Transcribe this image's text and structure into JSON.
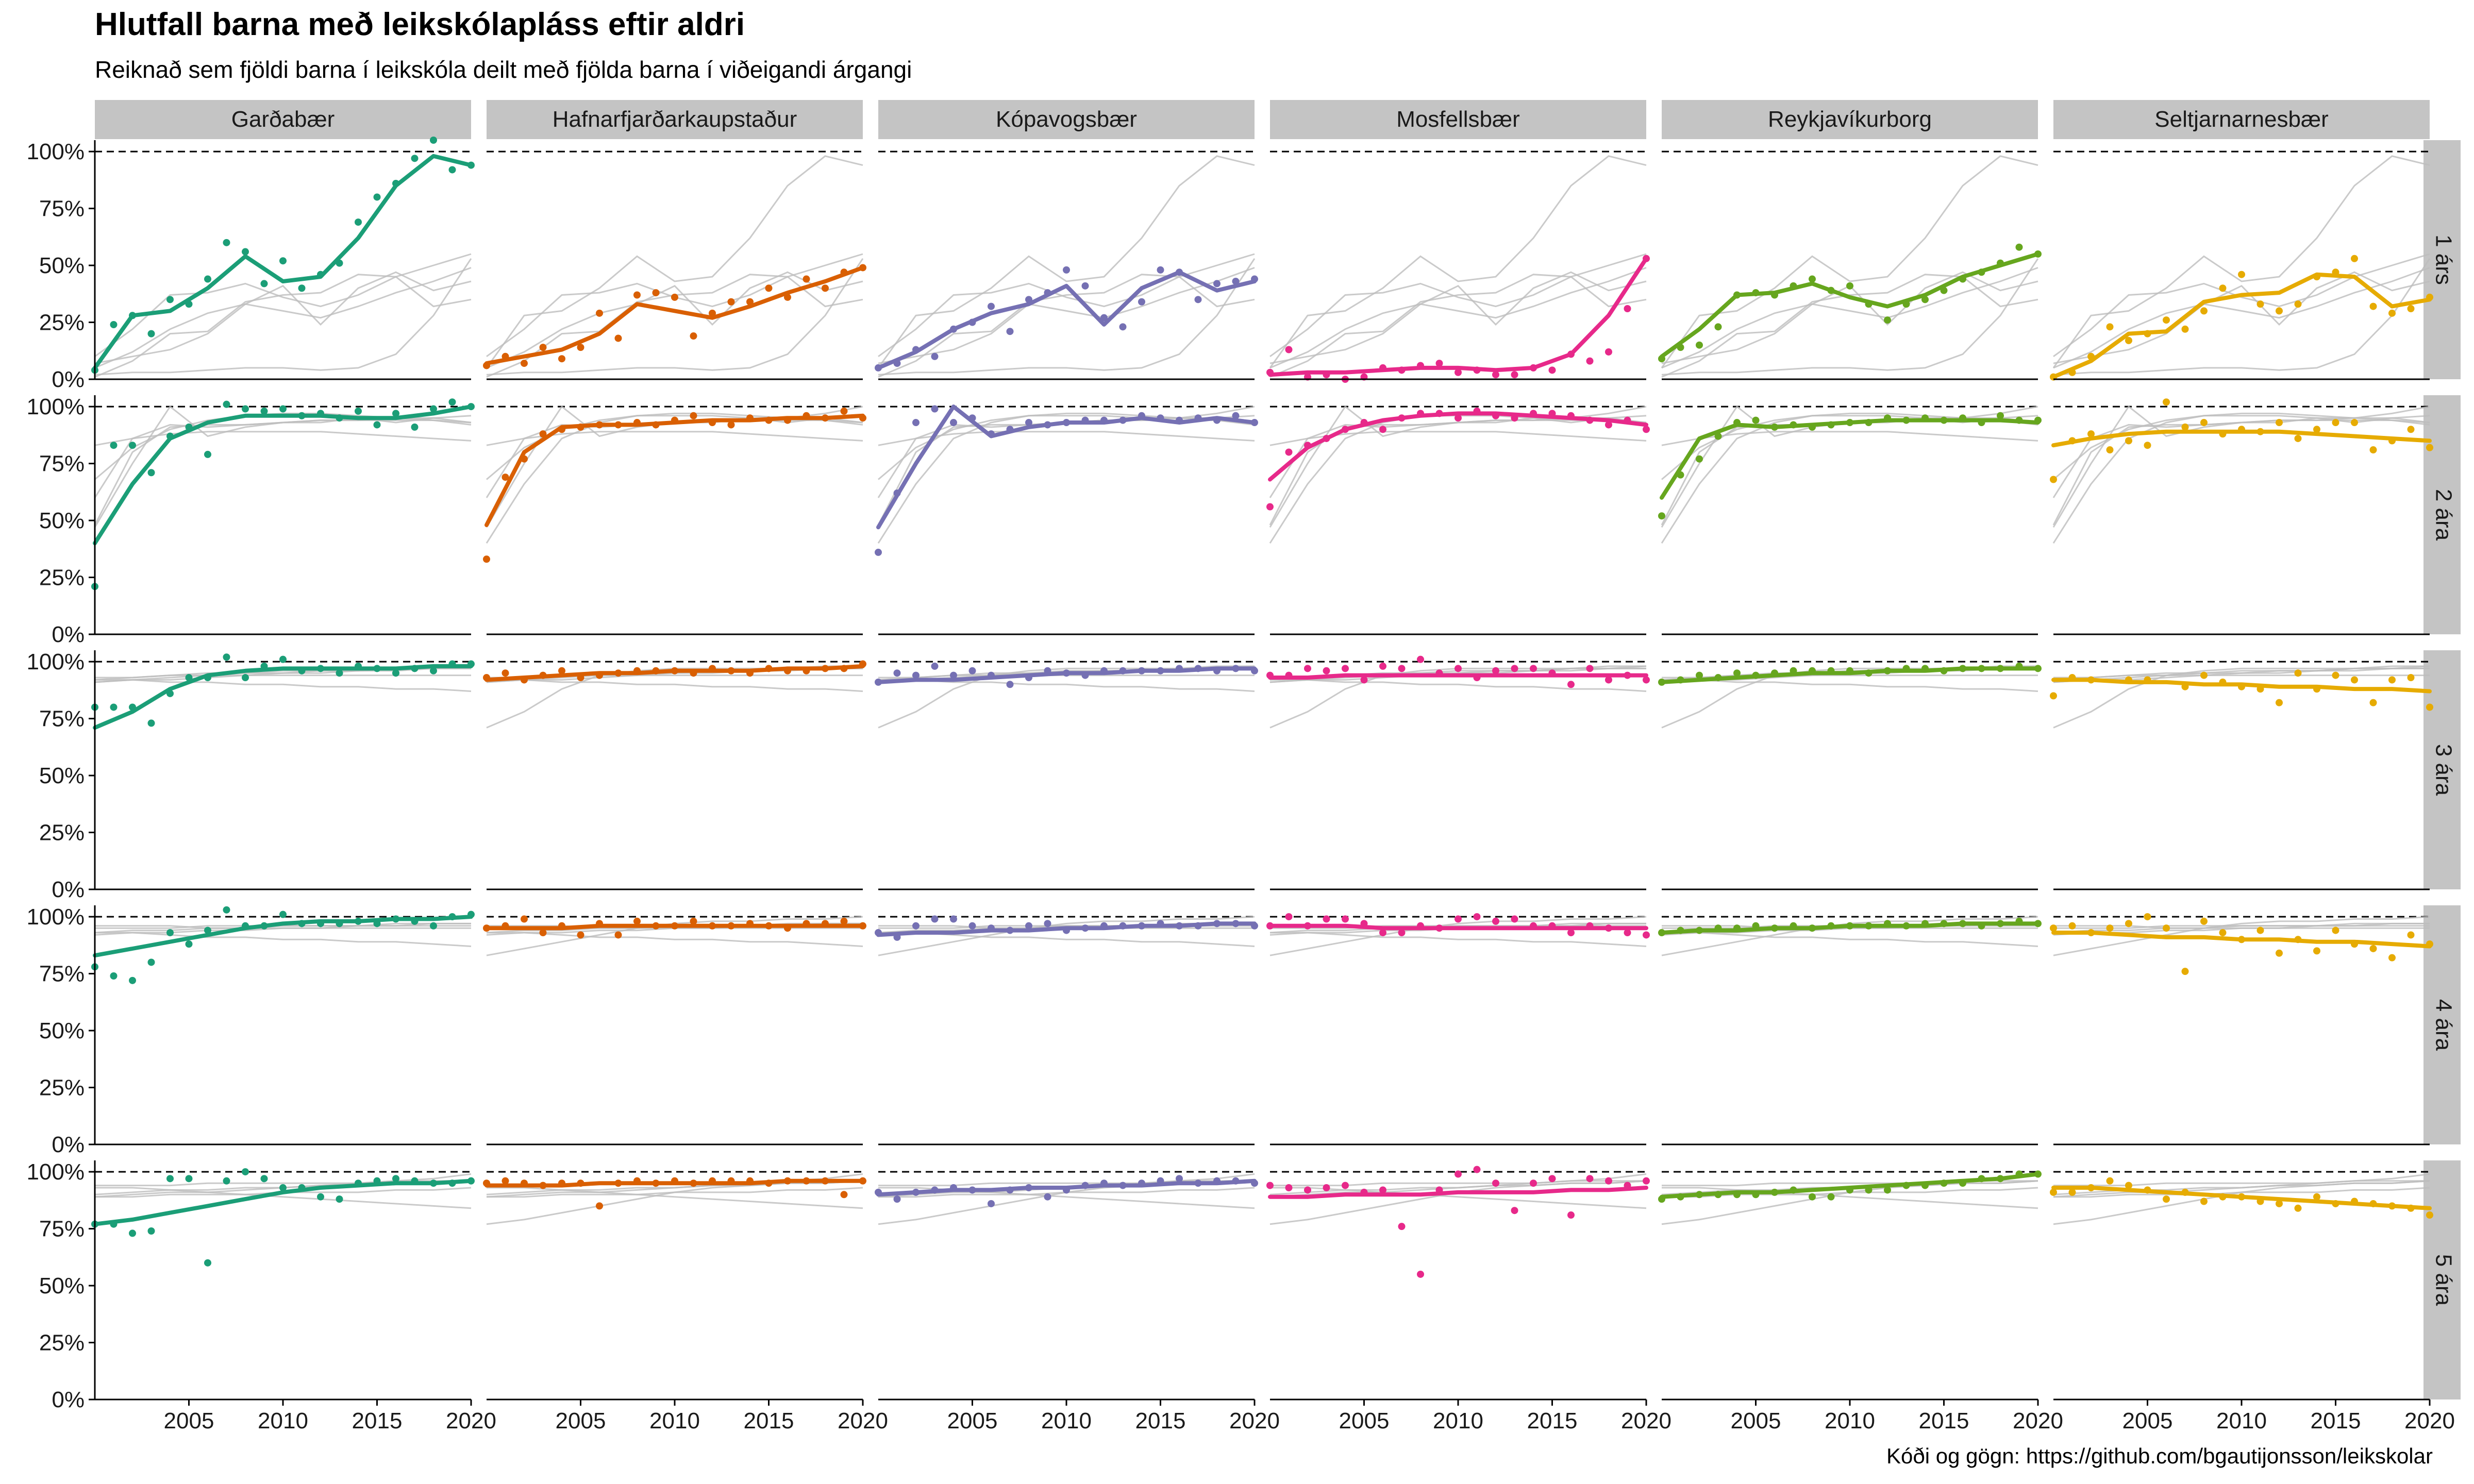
{
  "chart_data": {
    "type": "line",
    "title": "Hlutfall barna með leikskólapláss eftir aldri",
    "subtitle": "Reiknað sem fjöldi barna í leikskóla deilt með fjölda barna í viðeigandi árgangi",
    "caption": "Kóði og gögn: https://github.com/bgautijonsson/leikskolar",
    "xlim": [
      2000,
      2020
    ],
    "ylim": [
      0,
      1.05
    ],
    "x_ticks": [
      2005,
      2010,
      2015,
      2020
    ],
    "y_ticks": [
      0,
      0.25,
      0.5,
      0.75,
      1
    ],
    "y_tick_labels": [
      "0%",
      "25%",
      "50%",
      "75%",
      "100%"
    ],
    "reference_line": 1.0,
    "grid": false,
    "columns": [
      {
        "name": "Garðabær",
        "color": "#1b9e77"
      },
      {
        "name": "Hafnarfjarðarkaupstaður",
        "color": "#d95f02"
      },
      {
        "name": "Kópavogsbær",
        "color": "#7570b3"
      },
      {
        "name": "Mosfellsbær",
        "color": "#e7298a"
      },
      {
        "name": "Reykjavíkurborg",
        "color": "#66a61e"
      },
      {
        "name": "Seltjarnarnesbær",
        "color": "#e6ab02"
      }
    ],
    "rows": [
      "1 árs",
      "2 ára",
      "3 ára",
      "4 ára",
      "5 ára"
    ],
    "trend_x": [
      2000,
      2002,
      2004,
      2006,
      2008,
      2010,
      2012,
      2014,
      2016,
      2018,
      2020
    ],
    "trends": [
      [
        [
          0.05,
          0.28,
          0.3,
          0.4,
          0.54,
          0.43,
          0.45,
          0.62,
          0.85,
          0.98,
          0.94
        ],
        [
          0.4,
          0.66,
          0.86,
          0.93,
          0.96,
          0.96,
          0.96,
          0.95,
          0.95,
          0.97,
          1.0
        ],
        [
          0.71,
          0.78,
          0.88,
          0.94,
          0.96,
          0.97,
          0.97,
          0.97,
          0.97,
          0.98,
          0.98
        ],
        [
          0.83,
          0.86,
          0.89,
          0.92,
          0.95,
          0.97,
          0.98,
          0.98,
          0.99,
          0.99,
          1.0
        ],
        [
          0.77,
          0.79,
          0.82,
          0.85,
          0.88,
          0.91,
          0.93,
          0.94,
          0.95,
          0.95,
          0.96
        ]
      ],
      [
        [
          0.07,
          0.1,
          0.13,
          0.2,
          0.33,
          0.3,
          0.27,
          0.32,
          0.38,
          0.43,
          0.49
        ],
        [
          0.48,
          0.8,
          0.91,
          0.92,
          0.92,
          0.93,
          0.94,
          0.94,
          0.95,
          0.95,
          0.96
        ],
        [
          0.92,
          0.93,
          0.94,
          0.95,
          0.95,
          0.96,
          0.96,
          0.96,
          0.97,
          0.97,
          0.98
        ],
        [
          0.95,
          0.95,
          0.95,
          0.96,
          0.96,
          0.96,
          0.96,
          0.96,
          0.96,
          0.96,
          0.96
        ],
        [
          0.94,
          0.94,
          0.94,
          0.95,
          0.95,
          0.95,
          0.95,
          0.95,
          0.96,
          0.96,
          0.96
        ]
      ],
      [
        [
          0.05,
          0.12,
          0.22,
          0.29,
          0.33,
          0.41,
          0.24,
          0.4,
          0.47,
          0.39,
          0.43
        ],
        [
          0.47,
          0.75,
          1.0,
          0.87,
          0.91,
          0.93,
          0.93,
          0.95,
          0.93,
          0.95,
          0.93
        ],
        [
          0.91,
          0.92,
          0.92,
          0.93,
          0.94,
          0.95,
          0.95,
          0.96,
          0.96,
          0.97,
          0.97
        ],
        [
          0.92,
          0.93,
          0.93,
          0.94,
          0.94,
          0.95,
          0.95,
          0.96,
          0.96,
          0.97,
          0.97
        ],
        [
          0.9,
          0.91,
          0.92,
          0.92,
          0.93,
          0.93,
          0.94,
          0.94,
          0.95,
          0.95,
          0.96
        ]
      ],
      [
        [
          0.02,
          0.03,
          0.03,
          0.04,
          0.05,
          0.05,
          0.04,
          0.05,
          0.11,
          0.28,
          0.53
        ],
        [
          0.68,
          0.82,
          0.9,
          0.94,
          0.96,
          0.97,
          0.97,
          0.96,
          0.95,
          0.94,
          0.92
        ],
        [
          0.93,
          0.93,
          0.94,
          0.94,
          0.94,
          0.94,
          0.94,
          0.94,
          0.94,
          0.94,
          0.94
        ],
        [
          0.96,
          0.96,
          0.96,
          0.95,
          0.95,
          0.95,
          0.95,
          0.95,
          0.95,
          0.95,
          0.95
        ],
        [
          0.89,
          0.89,
          0.9,
          0.9,
          0.9,
          0.91,
          0.91,
          0.91,
          0.92,
          0.92,
          0.93
        ]
      ],
      [
        [
          0.1,
          0.22,
          0.37,
          0.38,
          0.42,
          0.36,
          0.32,
          0.37,
          0.45,
          0.5,
          0.55
        ],
        [
          0.6,
          0.86,
          0.92,
          0.91,
          0.92,
          0.93,
          0.94,
          0.94,
          0.94,
          0.94,
          0.93
        ],
        [
          0.91,
          0.92,
          0.93,
          0.94,
          0.95,
          0.95,
          0.96,
          0.96,
          0.97,
          0.97,
          0.97
        ],
        [
          0.93,
          0.94,
          0.94,
          0.95,
          0.95,
          0.96,
          0.96,
          0.96,
          0.97,
          0.97,
          0.97
        ],
        [
          0.89,
          0.9,
          0.91,
          0.91,
          0.92,
          0.93,
          0.94,
          0.95,
          0.96,
          0.97,
          0.99
        ]
      ],
      [
        [
          0.01,
          0.08,
          0.2,
          0.21,
          0.34,
          0.37,
          0.38,
          0.46,
          0.45,
          0.32,
          0.35
        ],
        [
          0.83,
          0.86,
          0.88,
          0.89,
          0.89,
          0.89,
          0.89,
          0.88,
          0.87,
          0.86,
          0.85
        ],
        [
          0.92,
          0.92,
          0.91,
          0.91,
          0.9,
          0.9,
          0.89,
          0.89,
          0.88,
          0.88,
          0.87
        ],
        [
          0.93,
          0.93,
          0.92,
          0.91,
          0.91,
          0.9,
          0.9,
          0.89,
          0.89,
          0.88,
          0.87
        ],
        [
          0.93,
          0.93,
          0.92,
          0.91,
          0.9,
          0.89,
          0.88,
          0.87,
          0.86,
          0.85,
          0.84
        ]
      ]
    ],
    "points_x": [
      2000,
      2001,
      2002,
      2003,
      2004,
      2005,
      2006,
      2007,
      2008,
      2009,
      2010,
      2011,
      2012,
      2013,
      2014,
      2015,
      2016,
      2017,
      2018,
      2019,
      2020
    ],
    "points": [
      [
        [
          0.04,
          0.24,
          0.28,
          0.2,
          0.35,
          0.33,
          0.44,
          0.6,
          0.56,
          0.42,
          0.52,
          0.4,
          0.46,
          0.51,
          0.69,
          0.8,
          0.86,
          0.97,
          1.05,
          0.92,
          0.94
        ],
        [
          0.21,
          0.83,
          0.83,
          0.71,
          0.87,
          0.91,
          0.79,
          1.01,
          0.99,
          0.98,
          0.99,
          0.96,
          0.97,
          0.95,
          0.98,
          0.92,
          0.97,
          0.91,
          0.99,
          1.02,
          1.0
        ],
        [
          0.8,
          0.8,
          0.8,
          0.73,
          0.86,
          0.93,
          0.93,
          1.02,
          0.93,
          0.98,
          1.01,
          0.96,
          0.97,
          0.95,
          0.98,
          0.97,
          0.95,
          0.97,
          0.96,
          0.99,
          0.99
        ],
        [
          0.78,
          0.74,
          0.72,
          0.8,
          0.93,
          0.88,
          0.94,
          1.03,
          0.96,
          0.96,
          1.01,
          0.97,
          0.97,
          0.97,
          0.98,
          0.97,
          0.99,
          0.98,
          0.96,
          1.0,
          1.01
        ],
        [
          0.77,
          0.77,
          0.73,
          0.74,
          0.97,
          0.97,
          0.6,
          0.96,
          1.0,
          0.97,
          0.93,
          0.93,
          0.89,
          0.88,
          0.95,
          0.96,
          0.97,
          0.96,
          0.95,
          0.95,
          0.96
        ]
      ],
      [
        [
          0.06,
          0.1,
          0.07,
          0.14,
          0.09,
          0.14,
          0.29,
          0.18,
          0.37,
          0.38,
          0.36,
          0.19,
          0.29,
          0.34,
          0.34,
          0.4,
          0.36,
          0.44,
          0.4,
          0.47,
          0.49
        ],
        [
          0.33,
          0.69,
          0.77,
          0.88,
          0.9,
          0.91,
          0.92,
          0.92,
          0.93,
          0.92,
          0.94,
          0.96,
          0.93,
          0.92,
          0.95,
          0.94,
          0.94,
          0.96,
          0.95,
          0.98,
          0.95
        ],
        [
          0.93,
          0.95,
          0.92,
          0.94,
          0.96,
          0.93,
          0.94,
          0.95,
          0.96,
          0.96,
          0.96,
          0.95,
          0.97,
          0.96,
          0.95,
          0.97,
          0.96,
          0.96,
          0.97,
          0.97,
          0.99
        ],
        [
          0.95,
          0.96,
          0.99,
          0.93,
          0.96,
          0.92,
          0.97,
          0.92,
          0.98,
          0.96,
          0.96,
          0.98,
          0.96,
          0.96,
          0.97,
          0.96,
          0.95,
          0.97,
          0.97,
          0.98,
          0.96
        ],
        [
          0.95,
          0.96,
          0.95,
          0.94,
          0.95,
          0.95,
          0.85,
          0.95,
          0.96,
          0.95,
          0.96,
          0.95,
          0.96,
          0.96,
          0.96,
          0.95,
          0.96,
          0.96,
          0.96,
          0.9,
          0.96
        ]
      ],
      [
        [
          0.05,
          0.07,
          0.13,
          0.1,
          0.22,
          0.25,
          0.32,
          0.21,
          0.35,
          0.38,
          0.48,
          0.41,
          0.27,
          0.23,
          0.34,
          0.48,
          0.47,
          0.35,
          0.42,
          0.43,
          0.44
        ],
        [
          0.36,
          0.62,
          0.93,
          0.99,
          0.93,
          0.95,
          0.88,
          0.9,
          0.93,
          0.92,
          0.93,
          0.94,
          0.94,
          0.94,
          0.96,
          0.95,
          0.94,
          0.95,
          0.94,
          0.96,
          0.93
        ],
        [
          0.91,
          0.95,
          0.94,
          0.98,
          0.94,
          0.96,
          0.94,
          0.9,
          0.93,
          0.96,
          0.95,
          0.94,
          0.96,
          0.96,
          0.96,
          0.96,
          0.97,
          0.97,
          0.96,
          0.97,
          0.96
        ],
        [
          0.93,
          0.91,
          0.96,
          0.99,
          0.99,
          0.96,
          0.95,
          0.94,
          0.96,
          0.97,
          0.94,
          0.95,
          0.96,
          0.96,
          0.96,
          0.97,
          0.96,
          0.96,
          0.97,
          0.97,
          0.96
        ],
        [
          0.91,
          0.88,
          0.91,
          0.92,
          0.93,
          0.92,
          0.86,
          0.92,
          0.93,
          0.89,
          0.92,
          0.94,
          0.95,
          0.94,
          0.95,
          0.96,
          0.97,
          0.95,
          0.96,
          0.96,
          0.95
        ]
      ],
      [
        [
          0.03,
          0.13,
          0.01,
          0.02,
          0.0,
          0.01,
          0.05,
          0.04,
          0.06,
          0.07,
          0.03,
          0.04,
          0.02,
          0.02,
          0.05,
          0.04,
          0.11,
          0.08,
          0.12,
          0.31,
          0.53
        ],
        [
          0.56,
          0.8,
          0.83,
          0.86,
          0.9,
          0.93,
          0.9,
          0.95,
          0.97,
          0.97,
          0.95,
          0.98,
          0.96,
          0.95,
          0.97,
          0.97,
          0.96,
          0.94,
          0.92,
          0.94,
          0.9
        ],
        [
          0.94,
          0.94,
          0.97,
          0.96,
          0.97,
          0.92,
          0.98,
          0.97,
          1.01,
          0.95,
          0.97,
          0.93,
          0.96,
          0.97,
          0.97,
          0.95,
          0.9,
          0.97,
          0.92,
          0.94,
          0.92
        ],
        [
          0.96,
          1.0,
          0.96,
          0.99,
          0.99,
          0.97,
          0.93,
          0.93,
          0.96,
          0.95,
          0.99,
          1.0,
          0.98,
          0.99,
          0.96,
          0.96,
          0.93,
          0.96,
          0.95,
          0.93,
          0.92
        ],
        [
          0.94,
          0.93,
          0.92,
          0.93,
          0.94,
          0.91,
          0.92,
          0.76,
          0.55,
          0.92,
          0.99,
          1.01,
          0.95,
          0.83,
          0.95,
          0.97,
          0.81,
          0.97,
          0.96,
          0.94,
          0.96
        ]
      ],
      [
        [
          0.09,
          0.14,
          0.15,
          0.23,
          0.37,
          0.38,
          0.37,
          0.41,
          0.44,
          0.39,
          0.41,
          0.33,
          0.26,
          0.33,
          0.35,
          0.39,
          0.44,
          0.47,
          0.51,
          0.58,
          0.55
        ],
        [
          0.52,
          0.7,
          0.77,
          0.87,
          0.93,
          0.94,
          0.91,
          0.92,
          0.91,
          0.92,
          0.93,
          0.93,
          0.95,
          0.94,
          0.95,
          0.94,
          0.95,
          0.93,
          0.96,
          0.94,
          0.94
        ],
        [
          0.91,
          0.92,
          0.94,
          0.93,
          0.95,
          0.94,
          0.95,
          0.96,
          0.96,
          0.96,
          0.96,
          0.95,
          0.96,
          0.97,
          0.97,
          0.96,
          0.97,
          0.97,
          0.97,
          0.98,
          0.97
        ],
        [
          0.93,
          0.94,
          0.94,
          0.95,
          0.95,
          0.96,
          0.95,
          0.96,
          0.95,
          0.96,
          0.96,
          0.96,
          0.97,
          0.96,
          0.97,
          0.97,
          0.97,
          0.96,
          0.97,
          0.98,
          0.97
        ],
        [
          0.88,
          0.89,
          0.9,
          0.9,
          0.9,
          0.9,
          0.91,
          0.92,
          0.89,
          0.89,
          0.92,
          0.92,
          0.92,
          0.94,
          0.94,
          0.95,
          0.95,
          0.97,
          0.97,
          0.99,
          0.99
        ]
      ],
      [
        [
          0.01,
          0.03,
          0.1,
          0.23,
          0.17,
          0.2,
          0.26,
          0.22,
          0.3,
          0.4,
          0.46,
          0.33,
          0.3,
          0.33,
          0.45,
          0.47,
          0.53,
          0.32,
          0.29,
          0.31,
          0.36
        ],
        [
          0.68,
          0.85,
          0.88,
          0.81,
          0.85,
          0.83,
          1.02,
          0.91,
          0.93,
          0.88,
          0.9,
          0.89,
          0.93,
          0.86,
          0.9,
          0.93,
          0.93,
          0.81,
          0.85,
          0.9,
          0.82
        ],
        [
          0.85,
          0.93,
          0.92,
          1.08,
          0.92,
          0.92,
          1.06,
          0.89,
          0.94,
          0.91,
          0.89,
          0.88,
          0.82,
          0.95,
          0.88,
          0.94,
          0.92,
          0.82,
          0.92,
          0.93,
          0.8
        ],
        [
          0.95,
          0.96,
          0.93,
          0.95,
          0.97,
          1.0,
          0.95,
          0.76,
          0.98,
          0.93,
          0.9,
          0.94,
          0.84,
          0.9,
          0.85,
          0.94,
          0.88,
          0.86,
          0.82,
          0.92,
          0.88
        ],
        [
          0.91,
          0.91,
          0.93,
          0.96,
          0.94,
          0.92,
          0.88,
          0.91,
          0.87,
          0.89,
          0.89,
          0.87,
          0.86,
          0.84,
          0.89,
          0.86,
          0.87,
          0.86,
          0.85,
          0.84,
          0.81
        ]
      ]
    ]
  }
}
